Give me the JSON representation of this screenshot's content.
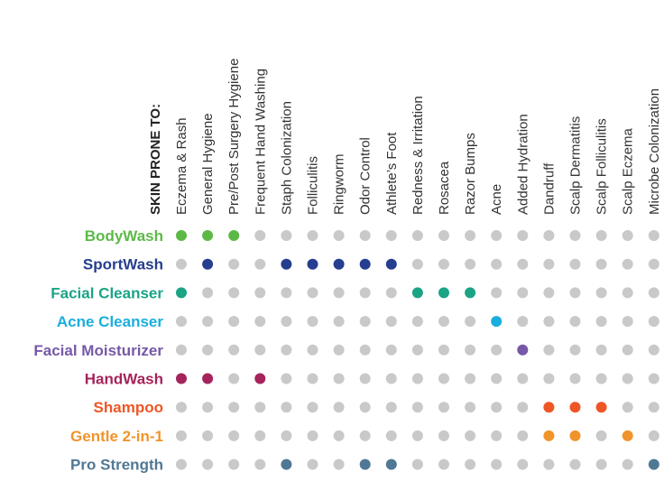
{
  "chart_data": {
    "type": "table",
    "header": "SKIN PRONE TO:",
    "colors": {
      "inactive": "#c9c9c9"
    },
    "columns": [
      "Eczema & Rash",
      "General Hygiene",
      "Pre/Post Surgery Hygiene",
      "Frequent Hand Washing",
      "Staph Colonization",
      "Folliculitis",
      "Ringworm",
      "Odor Control",
      "Athlete’s Foot",
      "Redness & Irritation",
      "Rosacea",
      "Razor Bumps",
      "Acne",
      "Added Hydration",
      "Dandruff",
      "Scalp Dermatitis",
      "Scalp Folliculitis",
      "Scalp Eczema",
      "Microbe Colonization"
    ],
    "rows": [
      {
        "name": "BodyWash",
        "color": "#5cb947",
        "active": [
          0,
          1,
          2
        ]
      },
      {
        "name": "SportWash",
        "color": "#263e8e",
        "active": [
          1,
          4,
          5,
          6,
          7,
          8
        ]
      },
      {
        "name": "Facial Cleanser",
        "color": "#1ba386",
        "active": [
          0,
          9,
          10,
          11
        ]
      },
      {
        "name": "Acne Cleanser",
        "color": "#1aaede",
        "active": [
          12
        ]
      },
      {
        "name": "Facial Moisturizer",
        "color": "#7659a6",
        "active": [
          13
        ]
      },
      {
        "name": "HandWash",
        "color": "#a5245c",
        "active": [
          0,
          1,
          3
        ]
      },
      {
        "name": "Shampoo",
        "color": "#ee5626",
        "active": [
          14,
          15,
          16
        ]
      },
      {
        "name": "Gentle 2-in-1",
        "color": "#f1932b",
        "active": [
          14,
          15,
          17
        ]
      },
      {
        "name": "Pro Strength",
        "color": "#4f7894",
        "active": [
          4,
          7,
          8,
          18
        ]
      }
    ]
  }
}
